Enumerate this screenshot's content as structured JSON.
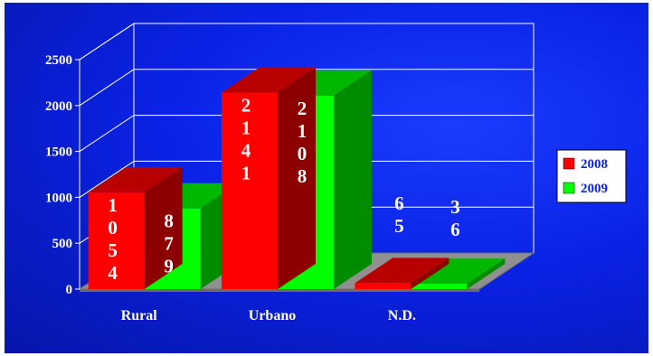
{
  "chart_data": {
    "type": "bar",
    "categories": [
      "Rural",
      "Urbano",
      "N.D."
    ],
    "series": [
      {
        "name": "2008",
        "values": [
          1054,
          2141,
          65
        ],
        "labels": [
          "1054",
          "2141",
          "65"
        ],
        "color": "#ff0000"
      },
      {
        "name": "2009",
        "values": [
          879,
          2108,
          36
        ],
        "labels": [
          "879",
          "2108",
          "36"
        ],
        "color": "#00ff00"
      }
    ],
    "y_ticks": [
      "0",
      "500",
      "1000",
      "1500",
      "2000",
      "2500"
    ],
    "ylim": [
      0,
      2500
    ],
    "grid": true,
    "legend_position": "right",
    "three_d": true,
    "title": "",
    "xlabel": "",
    "ylabel": ""
  },
  "colors": {
    "background": "#0a22e6",
    "text": "#ffffff",
    "floor": "#909090",
    "legend_bg": "#ffffff",
    "legend_text": "#0a22e6"
  }
}
